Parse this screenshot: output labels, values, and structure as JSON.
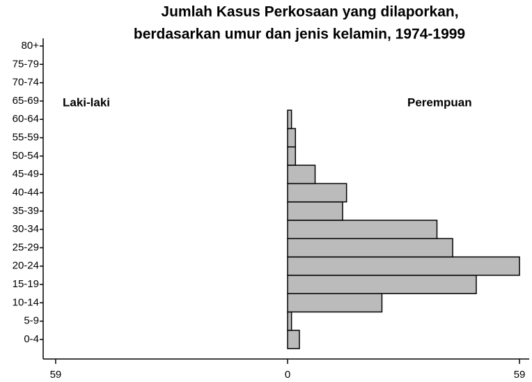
{
  "chart_data": {
    "type": "pyramid",
    "title": [
      "Jumlah Kasus Perkosaan yang dilaporkan,",
      "berdasarkan umur dan jenis kelamin, 1974-1999"
    ],
    "categories": [
      "0-4",
      "5-9",
      "10-14",
      "15-19",
      "20-24",
      "25-29",
      "30-34",
      "35-39",
      "40-44",
      "45-49",
      "50-54",
      "55-59",
      "60-64",
      "65-69",
      "70-74",
      "75-79",
      "80+"
    ],
    "series": [
      {
        "name": "Laki-laki",
        "side": "left",
        "color": "#bbbbbb",
        "values": [
          0,
          0,
          0,
          0,
          0,
          0,
          0,
          0,
          0,
          0,
          0,
          0,
          0,
          0,
          0,
          0,
          0
        ]
      },
      {
        "name": "Perempuan",
        "side": "right",
        "color": "#bbbbbb",
        "values": [
          3,
          1,
          24,
          48,
          59,
          42,
          38,
          14,
          15,
          7,
          2,
          2,
          1,
          0,
          0,
          0,
          0
        ]
      }
    ],
    "xlim": [
      -62,
      62
    ],
    "xticks": [
      {
        "value": -59,
        "label": "59"
      },
      0,
      59
    ]
  }
}
